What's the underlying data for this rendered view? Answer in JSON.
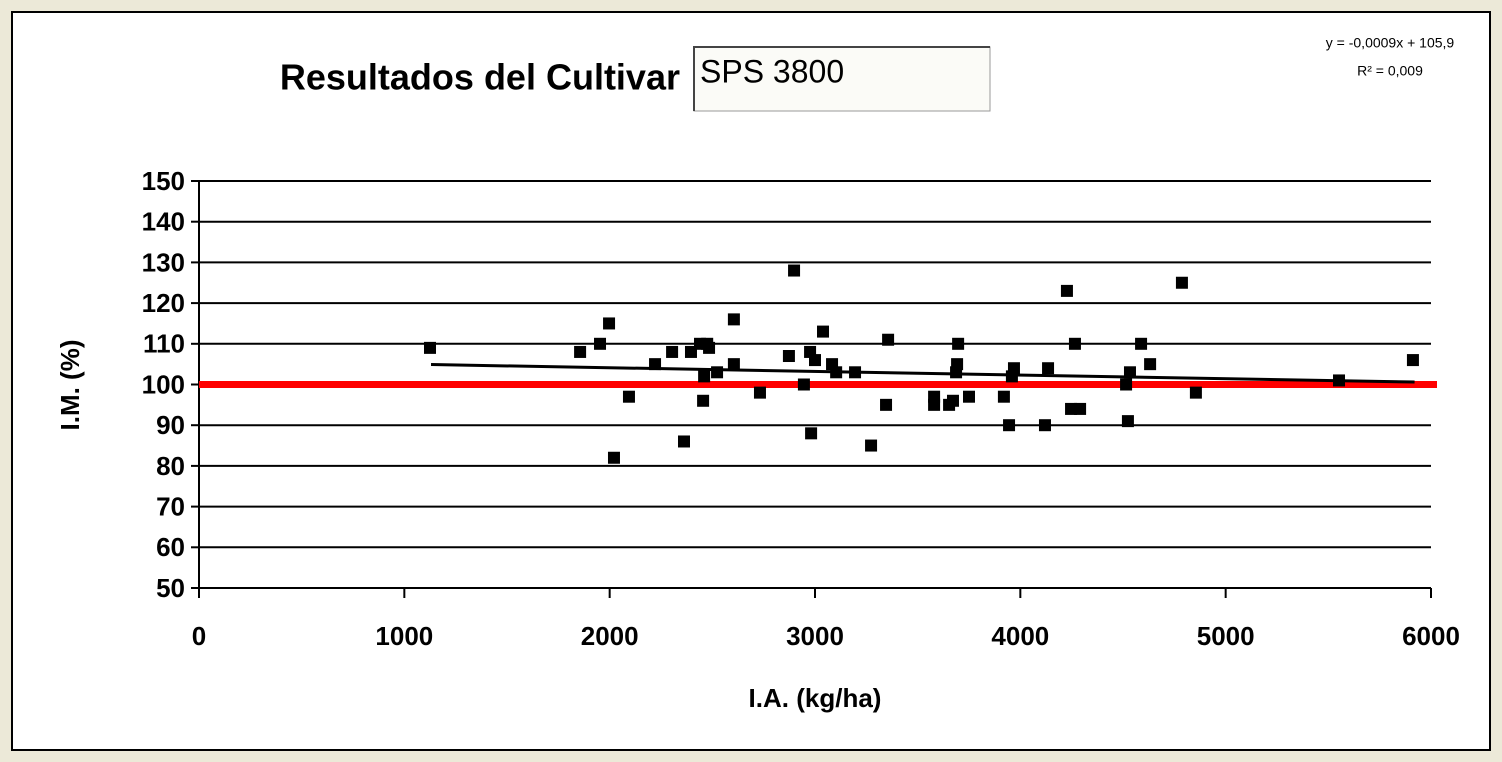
{
  "chart_data": {
    "type": "scatter",
    "title": "Resultados del Cultivar",
    "cultivar": "SPS 3800",
    "equation": "y = -0,0009x + 105,9",
    "r_squared": "R² = 0,009",
    "x_label": "I.A. (kg/ha)",
    "y_label": "I.M. (%)",
    "xlim": [
      0,
      6000
    ],
    "xticks": [
      0,
      1000,
      2000,
      3000,
      4000,
      5000,
      6000
    ],
    "ylim": [
      50,
      150
    ],
    "yticks": [
      50,
      60,
      70,
      80,
      90,
      100,
      110,
      120,
      130,
      140,
      150
    ],
    "grid": true,
    "series": [
      {
        "color": "#000000",
        "x": [
          1125,
          1856,
          1953,
          1997,
          2021,
          2094,
          2221,
          2304,
          2362,
          2396,
          2440,
          2455,
          2460,
          2475,
          2484,
          2523,
          2605,
          2605,
          2732,
          2873,
          2898,
          2946,
          2976,
          2981,
          3000,
          3039,
          3083,
          3103,
          3195,
          3273,
          3346,
          3356,
          3580,
          3580,
          3653,
          3672,
          3687,
          3692,
          3697,
          3750,
          3920,
          3945,
          3959,
          3969,
          4120,
          4135,
          4227,
          4247,
          4266,
          4291,
          4515,
          4524,
          4534,
          4588,
          4632,
          4787,
          4855,
          5552,
          5912
        ],
        "values": [
          109,
          108,
          110,
          115,
          82,
          97,
          105,
          108,
          86,
          108,
          110,
          96,
          102,
          110,
          109,
          103,
          116,
          105,
          98,
          107,
          128,
          100,
          108,
          88,
          106,
          113,
          105,
          103,
          103,
          85,
          95,
          111,
          97,
          95,
          95,
          96,
          103,
          105,
          110,
          97,
          97,
          90,
          102,
          104,
          90,
          104,
          123,
          94,
          110,
          94,
          100,
          91,
          103,
          110,
          105,
          125,
          98,
          101,
          106
        ]
      }
    ],
    "trendline": {
      "color": "#000000",
      "x": [
        1130,
        5920
      ],
      "values": [
        104.9,
        100.6
      ]
    },
    "reference_line": {
      "color": "#ff0000",
      "value": 100
    }
  }
}
